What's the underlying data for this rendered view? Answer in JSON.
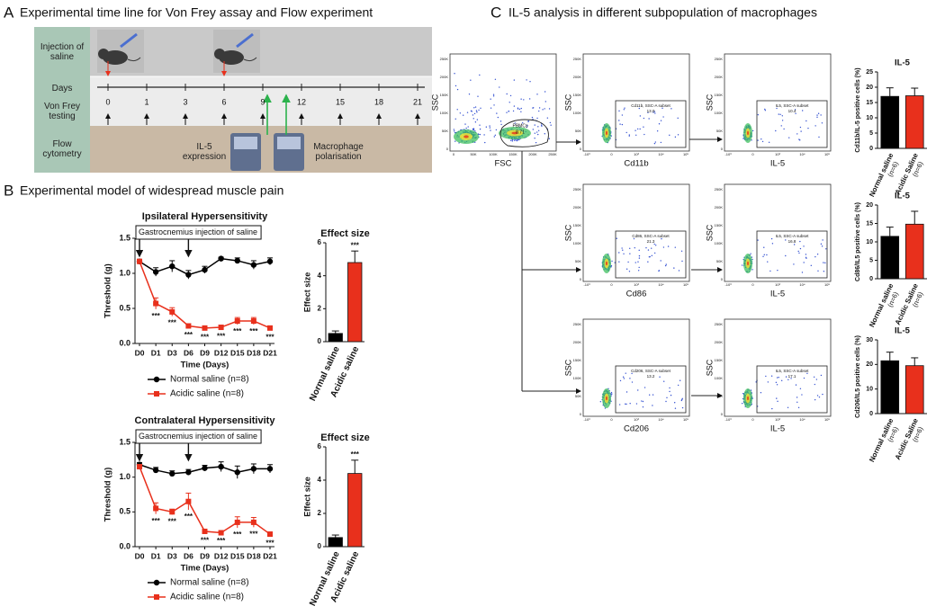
{
  "panels": {
    "A": {
      "letter": "A",
      "title": "Experimental time line for Von Frey assay and Flow experiment",
      "rows": [
        "Injection of saline",
        "Days",
        "Von Frey testing",
        "Flow cytometry"
      ],
      "days": [
        0,
        1,
        3,
        6,
        9,
        12,
        15,
        18,
        21
      ],
      "injection_days": [
        0,
        6
      ],
      "flow_labels": [
        "IL-5 expression",
        "Macrophage polarisation"
      ]
    },
    "B": {
      "letter": "B",
      "title": "Experimental model of widespread muscle pain"
    },
    "C": {
      "letter": "C",
      "title": "IL-5 analysis in different subpopulation of macrophages",
      "flow_ticks": {
        "linear": [
          "250K",
          "200K",
          "150K",
          "100K",
          "50K",
          "0"
        ],
        "log": [
          "-10³",
          "0",
          "10³",
          "10⁴",
          "10⁵"
        ]
      },
      "flow_plots": [
        {
          "xlabel": "FSC",
          "ylabel": "SSC",
          "gate_label": "PBMCs",
          "gate_value": "8.71"
        },
        {
          "xlabel": "Cd11b",
          "ylabel": "SSC",
          "gate_label": "Cd11b, SSC-A subset",
          "gate_value": "13.0"
        },
        {
          "xlabel": "IL-5",
          "ylabel": "SSC",
          "gate_label": "IL5, SSC-A subset",
          "gate_value": "10.4"
        },
        {
          "xlabel": "Cd86",
          "ylabel": "SSC",
          "gate_label": "Cd86, SSC-A subset",
          "gate_value": "21.3"
        },
        {
          "xlabel": "IL-5",
          "ylabel": "SSC",
          "gate_label": "IL5, SSC-A subset",
          "gate_value": "16.8"
        },
        {
          "xlabel": "Cd206",
          "ylabel": "SSC",
          "gate_label": "Cd206, SSC-A subset",
          "gate_value": "13.2"
        },
        {
          "xlabel": "IL-5",
          "ylabel": "SSC",
          "gate_label": "IL5, SSC-A subset",
          "gate_value": "17.1"
        }
      ]
    }
  },
  "chart_data": [
    {
      "type": "line",
      "title": "Ipsilateral Hypersensitivity",
      "xlabel": "Time (Days)",
      "ylabel": "Threshold (g)",
      "annotation": "Gastrocnemius injection of saline",
      "injection_days": [
        "D0",
        "D6"
      ],
      "categories": [
        "D0",
        "D1",
        "D3",
        "D6",
        "D9",
        "D12",
        "D15",
        "D18",
        "D21"
      ],
      "series": [
        {
          "name": "Normal saline (n=8)",
          "color": "#000000",
          "values": [
            1.17,
            1.02,
            1.1,
            0.98,
            1.05,
            1.21,
            1.18,
            1.12,
            1.17
          ],
          "errors": [
            0.03,
            0.06,
            0.08,
            0.06,
            0.05,
            0.02,
            0.04,
            0.06,
            0.05
          ]
        },
        {
          "name": "Acidic saline (n=8)",
          "color": "#e8301c",
          "values": [
            1.17,
            0.57,
            0.45,
            0.25,
            0.22,
            0.23,
            0.32,
            0.32,
            0.22
          ],
          "errors": [
            0.03,
            0.08,
            0.06,
            0.03,
            0.03,
            0.03,
            0.05,
            0.05,
            0.03
          ],
          "significance": [
            null,
            "***",
            "***",
            "***",
            "***",
            "***",
            "***",
            "***",
            "***"
          ]
        }
      ],
      "ylim": [
        0,
        1.5
      ],
      "yticks": [
        {
          "value": 0,
          "label": "0.0"
        },
        0.5,
        {
          "value": 1,
          "label": "1.0"
        },
        1.5
      ]
    },
    {
      "type": "bar",
      "title": "Effect size",
      "ylabel": "Effect size",
      "categories": [
        "Normal saline",
        "Acidic saline"
      ],
      "values": [
        0.5,
        4.8
      ],
      "errors": [
        0.15,
        0.7
      ],
      "colors": [
        "#000000",
        "#e8301c"
      ],
      "significance": [
        null,
        "***"
      ],
      "ylim": [
        0,
        6
      ],
      "yticks": [
        0,
        2,
        4,
        6
      ]
    },
    {
      "type": "line",
      "title": "Contralateral Hypersensitivity",
      "xlabel": "Time (Days)",
      "ylabel": "Threshold (g)",
      "annotation": "Gastrocnemius injection of saline",
      "injection_days": [
        "D0",
        "D6"
      ],
      "categories": [
        "D0",
        "D1",
        "D3",
        "D6",
        "D9",
        "D12",
        "D15",
        "D18",
        "D21"
      ],
      "series": [
        {
          "name": "Normal saline (n=8)",
          "color": "#000000",
          "values": [
            1.18,
            1.1,
            1.05,
            1.07,
            1.13,
            1.15,
            1.07,
            1.12,
            1.12
          ],
          "errors": [
            0.03,
            0.04,
            0.04,
            0.04,
            0.04,
            0.07,
            0.09,
            0.07,
            0.06
          ]
        },
        {
          "name": "Acidic saline (n=8)",
          "color": "#e8301c",
          "values": [
            1.15,
            0.55,
            0.5,
            0.65,
            0.22,
            0.2,
            0.35,
            0.35,
            0.18
          ],
          "errors": [
            0.03,
            0.08,
            0.04,
            0.12,
            0.03,
            0.02,
            0.08,
            0.07,
            0.03
          ],
          "significance": [
            null,
            "***",
            "***",
            "***",
            "***",
            "***",
            "***",
            "***",
            "***"
          ]
        }
      ],
      "ylim": [
        0,
        1.5
      ],
      "yticks": [
        {
          "value": 0,
          "label": "0.0"
        },
        0.5,
        {
          "value": 1,
          "label": "1.0"
        },
        1.5
      ]
    },
    {
      "type": "bar",
      "title": "Effect size",
      "ylabel": "Effect size",
      "categories": [
        "Normal saline",
        "Acidic saline"
      ],
      "values": [
        0.55,
        4.4
      ],
      "errors": [
        0.15,
        0.8
      ],
      "colors": [
        "#000000",
        "#e8301c"
      ],
      "significance": [
        null,
        "***"
      ],
      "ylim": [
        0,
        6
      ],
      "yticks": [
        0,
        2,
        4,
        6
      ]
    },
    {
      "type": "bar",
      "title": "IL-5",
      "ylabel": "Cd11b/IL-5 positive cells (%)",
      "categories": [
        "Normal saline",
        "Acidic Saline"
      ],
      "category_notes": [
        "(n=6)",
        "(n=6)"
      ],
      "values": [
        17,
        17.2
      ],
      "errors": [
        2.8,
        2.5
      ],
      "colors": [
        "#000000",
        "#e8301c"
      ],
      "ylim": [
        0,
        25
      ],
      "yticks": [
        0,
        5,
        10,
        15,
        20,
        25
      ]
    },
    {
      "type": "bar",
      "title": "IL-5",
      "ylabel": "Cd86/IL5 positive cells (%)",
      "categories": [
        "Normal saline",
        "Acidic Saline"
      ],
      "category_notes": [
        "(n=6)",
        "(n=6)"
      ],
      "values": [
        11.5,
        14.8
      ],
      "errors": [
        2.5,
        3.5
      ],
      "colors": [
        "#000000",
        "#e8301c"
      ],
      "ylim": [
        0,
        20
      ],
      "yticks": [
        0,
        5,
        10,
        15,
        20
      ]
    },
    {
      "type": "bar",
      "title": "IL-5",
      "ylabel": "Cd206/IL5 positive cells (%)",
      "categories": [
        "Normal saline",
        "Acidic Saline"
      ],
      "category_notes": [
        "(n=6)",
        "(n=6)"
      ],
      "values": [
        21.5,
        19.5
      ],
      "errors": [
        3.5,
        3.2
      ],
      "colors": [
        "#000000",
        "#e8301c"
      ],
      "ylim": [
        0,
        30
      ],
      "yticks": [
        0,
        10,
        20,
        30
      ]
    }
  ]
}
